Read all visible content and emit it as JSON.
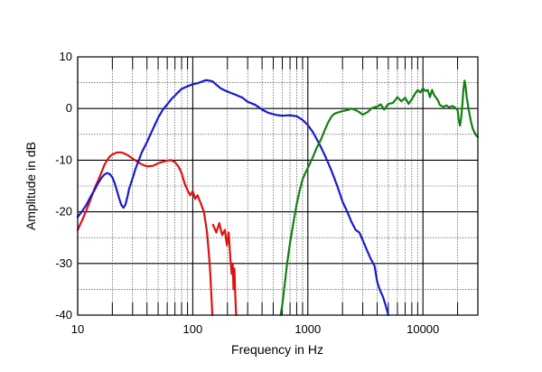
{
  "chart_data": {
    "type": "line",
    "title": "",
    "xlabel": "Frequency in Hz",
    "ylabel": "Amplitude in dB",
    "xscale": "log",
    "xlim": [
      10,
      30000
    ],
    "ylim": [
      -40,
      10
    ],
    "grid": true,
    "legend": "none",
    "x_tick_labels": [
      "10",
      "100",
      "1000",
      "10000"
    ],
    "y_tick_labels": [
      "10",
      "0",
      "-10",
      "-20",
      "-30",
      "-40"
    ],
    "series": [
      {
        "color": "#e01010",
        "points": [
          [
            10,
            -23.5
          ],
          [
            11,
            -21.5
          ],
          [
            12,
            -19.5
          ],
          [
            13,
            -17.5
          ],
          [
            14,
            -15.5
          ],
          [
            15,
            -14
          ],
          [
            16,
            -12.5
          ],
          [
            17,
            -11
          ],
          [
            18,
            -10
          ],
          [
            19,
            -9.3
          ],
          [
            20,
            -8.9
          ],
          [
            22,
            -8.5
          ],
          [
            24,
            -8.5
          ],
          [
            26,
            -8.8
          ],
          [
            28,
            -9.2
          ],
          [
            30,
            -9.7
          ],
          [
            33,
            -10.3
          ],
          [
            36,
            -10.8
          ],
          [
            40,
            -11.2
          ],
          [
            45,
            -11.1
          ],
          [
            50,
            -10.6
          ],
          [
            55,
            -10.3
          ],
          [
            60,
            -10.1
          ],
          [
            65,
            -10.0
          ],
          [
            70,
            -10.4
          ],
          [
            75,
            -11.2
          ],
          [
            80,
            -12.5
          ],
          [
            85,
            -14.5
          ],
          [
            90,
            -15.8
          ],
          [
            95,
            -16.8
          ],
          [
            100,
            -16.0
          ],
          [
            105,
            -17.5
          ],
          [
            110,
            -16.8
          ],
          [
            118,
            -18.5
          ],
          [
            125,
            -20
          ],
          [
            130,
            -22.5
          ],
          [
            133,
            -24
          ],
          [
            136,
            -26.5
          ],
          [
            139,
            -29
          ],
          [
            142,
            -32
          ],
          [
            145,
            -36
          ],
          [
            148,
            -40
          ]
        ],
        "tail": [
          [
            150,
            -22.5
          ],
          [
            160,
            -24
          ],
          [
            170,
            -22.2
          ],
          [
            180,
            -24.5
          ],
          [
            190,
            -23.5
          ],
          [
            198,
            -26.5
          ],
          [
            205,
            -24
          ],
          [
            212,
            -29
          ],
          [
            218,
            -32
          ],
          [
            222,
            -30
          ],
          [
            226,
            -35
          ],
          [
            230,
            -31
          ],
          [
            234,
            -36
          ],
          [
            238,
            -40
          ]
        ]
      },
      {
        "color": "#1a1acc",
        "points": [
          [
            10,
            -21
          ],
          [
            11,
            -19.8
          ],
          [
            12,
            -18.5
          ],
          [
            13,
            -17
          ],
          [
            14,
            -15.8
          ],
          [
            15,
            -14.5
          ],
          [
            16,
            -13.5
          ],
          [
            17,
            -12.8
          ],
          [
            18,
            -12.5
          ],
          [
            19,
            -12.7
          ],
          [
            20,
            -13.3
          ],
          [
            21,
            -14.5
          ],
          [
            22,
            -16
          ],
          [
            23,
            -17.5
          ],
          [
            24,
            -18.7
          ],
          [
            25,
            -19.2
          ],
          [
            26,
            -18.6
          ],
          [
            27,
            -17.2
          ],
          [
            28,
            -15.5
          ],
          [
            30,
            -13.5
          ],
          [
            32,
            -11.5
          ],
          [
            34,
            -10
          ],
          [
            36,
            -8.5
          ],
          [
            40,
            -6.5
          ],
          [
            45,
            -4
          ],
          [
            50,
            -1.8
          ],
          [
            55,
            -0.2
          ],
          [
            60,
            0.8
          ],
          [
            65,
            1.8
          ],
          [
            70,
            2.5
          ],
          [
            75,
            3.2
          ],
          [
            80,
            3.8
          ],
          [
            90,
            4.3
          ],
          [
            100,
            4.7
          ],
          [
            110,
            4.9
          ],
          [
            120,
            5.2
          ],
          [
            130,
            5.5
          ],
          [
            140,
            5.4
          ],
          [
            150,
            5.2
          ],
          [
            160,
            4.6
          ],
          [
            175,
            3.9
          ],
          [
            190,
            3.5
          ],
          [
            210,
            3.1
          ],
          [
            240,
            2.6
          ],
          [
            270,
            2.1
          ],
          [
            300,
            1.3
          ],
          [
            350,
            0.7
          ],
          [
            400,
            -0.2
          ],
          [
            450,
            -0.8
          ],
          [
            500,
            -1.1
          ],
          [
            550,
            -1.3
          ],
          [
            600,
            -1.4
          ],
          [
            700,
            -1.3
          ],
          [
            800,
            -1.5
          ],
          [
            900,
            -2.2
          ],
          [
            1000,
            -3.2
          ],
          [
            1100,
            -4.5
          ],
          [
            1200,
            -6
          ],
          [
            1300,
            -7.5
          ],
          [
            1400,
            -9
          ],
          [
            1500,
            -10.5
          ],
          [
            1600,
            -12
          ],
          [
            1700,
            -13.5
          ],
          [
            1800,
            -15
          ],
          [
            1900,
            -16.5
          ],
          [
            2000,
            -18
          ],
          [
            2200,
            -20
          ],
          [
            2400,
            -22
          ],
          [
            2600,
            -23.5
          ],
          [
            2800,
            -24
          ],
          [
            3000,
            -25.5
          ],
          [
            3200,
            -27
          ],
          [
            3500,
            -29
          ],
          [
            3800,
            -30.5
          ],
          [
            4000,
            -33.5
          ],
          [
            4200,
            -35
          ],
          [
            4500,
            -36.5
          ],
          [
            4800,
            -38.5
          ],
          [
            5000,
            -40
          ]
        ]
      },
      {
        "color": "#128012",
        "points": [
          [
            580,
            -40
          ],
          [
            600,
            -38
          ],
          [
            630,
            -34
          ],
          [
            660,
            -30
          ],
          [
            700,
            -26
          ],
          [
            750,
            -22
          ],
          [
            800,
            -18.5
          ],
          [
            850,
            -15.8
          ],
          [
            900,
            -13.7
          ],
          [
            950,
            -12.5
          ],
          [
            1000,
            -11.5
          ],
          [
            1100,
            -9.5
          ],
          [
            1200,
            -7.5
          ],
          [
            1300,
            -6
          ],
          [
            1400,
            -4.2
          ],
          [
            1500,
            -2.7
          ],
          [
            1600,
            -1.6
          ],
          [
            1700,
            -1
          ],
          [
            1800,
            -0.8
          ],
          [
            2000,
            -0.5
          ],
          [
            2200,
            -0.3
          ],
          [
            2400,
            0
          ],
          [
            2600,
            -0.3
          ],
          [
            2800,
            -0.7
          ],
          [
            3000,
            -1.2
          ],
          [
            3300,
            -0.7
          ],
          [
            3600,
            0.1
          ],
          [
            4000,
            0.4
          ],
          [
            4300,
            0.8
          ],
          [
            4600,
            -0.2
          ],
          [
            5000,
            0.9
          ],
          [
            5500,
            1.1
          ],
          [
            6000,
            2.2
          ],
          [
            6500,
            1.4
          ],
          [
            7000,
            2.1
          ],
          [
            7500,
            0.9
          ],
          [
            8000,
            1.8
          ],
          [
            8500,
            2.8
          ],
          [
            9000,
            3.6
          ],
          [
            9500,
            3.1
          ],
          [
            10000,
            3.9
          ],
          [
            10500,
            3.4
          ],
          [
            11000,
            3.6
          ],
          [
            11500,
            2.2
          ],
          [
            12000,
            3.6
          ],
          [
            12500,
            2.6
          ],
          [
            13000,
            2.1
          ],
          [
            13500,
            1.6
          ],
          [
            14000,
            0.7
          ],
          [
            15000,
            0.3
          ],
          [
            16000,
            0.6
          ],
          [
            17000,
            0.2
          ],
          [
            18000,
            0.5
          ],
          [
            19000,
            0.2
          ],
          [
            20000,
            -0.3
          ],
          [
            20500,
            -2.3
          ],
          [
            21000,
            -3.3
          ],
          [
            21500,
            -1.8
          ],
          [
            22000,
            0.8
          ],
          [
            22500,
            3.8
          ],
          [
            23000,
            5.4
          ],
          [
            23500,
            4.2
          ],
          [
            24000,
            2.2
          ],
          [
            25000,
            -0.3
          ],
          [
            26000,
            -2.3
          ],
          [
            27000,
            -3.8
          ],
          [
            28000,
            -4.6
          ],
          [
            29000,
            -5.2
          ],
          [
            30000,
            -5.5
          ]
        ]
      }
    ]
  }
}
